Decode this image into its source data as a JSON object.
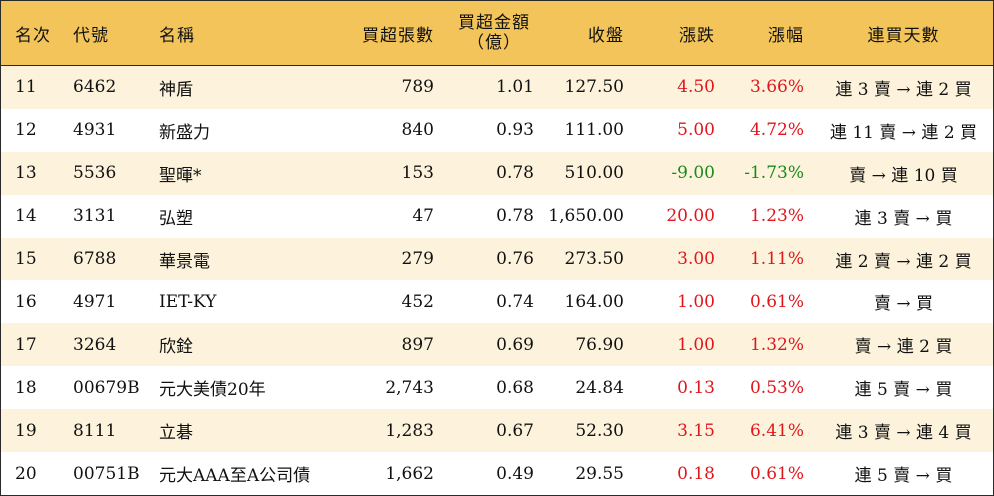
{
  "header": {
    "rank": "名次",
    "code": "代號",
    "name": "名稱",
    "net_lots": "買超張數",
    "net_amount_line1": "買超金額",
    "net_amount_line2": "（億）",
    "close": "收盤",
    "change": "漲跌",
    "pct": "漲幅",
    "streak": "連買天數"
  },
  "colors": {
    "header_bg": "#f2c45a",
    "stripe_bg": "#fdf3dc",
    "up": "#e0161c",
    "down": "#1a8a1a",
    "border": "#2a2a2a"
  },
  "rows": [
    {
      "rank": "11",
      "code": "6462",
      "name": "神盾",
      "lots": "789",
      "amount": "1.01",
      "close": "127.50",
      "change": "4.50",
      "pct": "3.66%",
      "dir": "up",
      "streak": "連 3 賣 → 連 2 買"
    },
    {
      "rank": "12",
      "code": "4931",
      "name": "新盛力",
      "lots": "840",
      "amount": "0.93",
      "close": "111.00",
      "change": "5.00",
      "pct": "4.72%",
      "dir": "up",
      "streak": "連 11 賣 → 連 2 買"
    },
    {
      "rank": "13",
      "code": "5536",
      "name": "聖暉*",
      "lots": "153",
      "amount": "0.78",
      "close": "510.00",
      "change": "-9.00",
      "pct": "-1.73%",
      "dir": "down",
      "streak": "賣 → 連 10 買"
    },
    {
      "rank": "14",
      "code": "3131",
      "name": "弘塑",
      "lots": "47",
      "amount": "0.78",
      "close": "1,650.00",
      "change": "20.00",
      "pct": "1.23%",
      "dir": "up",
      "streak": "連 3 賣 → 買"
    },
    {
      "rank": "15",
      "code": "6788",
      "name": "華景電",
      "lots": "279",
      "amount": "0.76",
      "close": "273.50",
      "change": "3.00",
      "pct": "1.11%",
      "dir": "up",
      "streak": "連 2 賣 → 連 2 買"
    },
    {
      "rank": "16",
      "code": "4971",
      "name": "IET-KY",
      "lots": "452",
      "amount": "0.74",
      "close": "164.00",
      "change": "1.00",
      "pct": "0.61%",
      "dir": "up",
      "streak": "賣 → 買"
    },
    {
      "rank": "17",
      "code": "3264",
      "name": "欣銓",
      "lots": "897",
      "amount": "0.69",
      "close": "76.90",
      "change": "1.00",
      "pct": "1.32%",
      "dir": "up",
      "streak": "賣 → 連 2 買"
    },
    {
      "rank": "18",
      "code": "00679B",
      "name": "元大美債20年",
      "lots": "2,743",
      "amount": "0.68",
      "close": "24.84",
      "change": "0.13",
      "pct": "0.53%",
      "dir": "up",
      "streak": "連 5 賣 → 買"
    },
    {
      "rank": "19",
      "code": "8111",
      "name": "立碁",
      "lots": "1,283",
      "amount": "0.67",
      "close": "52.30",
      "change": "3.15",
      "pct": "6.41%",
      "dir": "up",
      "streak": "連 3 賣 → 連 4 買"
    },
    {
      "rank": "20",
      "code": "00751B",
      "name": "元大AAA至A公司債",
      "lots": "1,662",
      "amount": "0.49",
      "close": "29.55",
      "change": "0.18",
      "pct": "0.61%",
      "dir": "up",
      "streak": "連 5 賣 → 買"
    }
  ]
}
